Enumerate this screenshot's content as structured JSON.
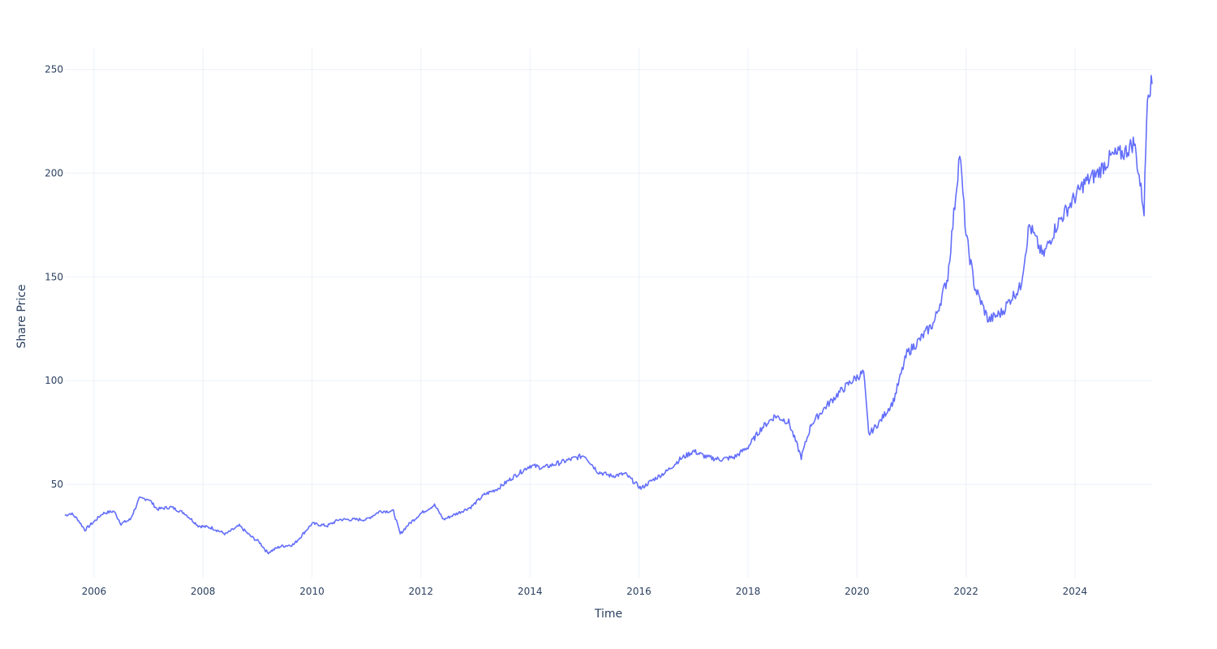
{
  "chart_data": {
    "type": "line",
    "title": "",
    "xlabel": "Time",
    "ylabel": "Share Price",
    "x_ticks": [
      "2006",
      "2008",
      "2010",
      "2012",
      "2014",
      "2016",
      "2018",
      "2020",
      "2022",
      "2024"
    ],
    "y_ticks": [
      50,
      100,
      150,
      200,
      250
    ],
    "xlim": [
      "2005-06-20",
      "2025-06-01"
    ],
    "ylim": [
      5,
      260
    ],
    "grid": true,
    "line_color": "#636efa",
    "series": [
      {
        "x": [
          "2005-06-20",
          "2005-08-01",
          "2005-09-15",
          "2005-11-01",
          "2006-01-01",
          "2006-03-01",
          "2006-05-15",
          "2006-07-01",
          "2006-09-01",
          "2006-11-01",
          "2007-01-01",
          "2007-03-01",
          "2007-06-01",
          "2007-09-01",
          "2007-12-01",
          "2008-03-01",
          "2008-06-01",
          "2008-09-01",
          "2008-11-15",
          "2009-01-15",
          "2009-03-09",
          "2009-06-01",
          "2009-09-01",
          "2010-01-01",
          "2010-04-15",
          "2010-07-01",
          "2010-10-01",
          "2011-01-01",
          "2011-04-01",
          "2011-07-01",
          "2011-08-15",
          "2011-10-01",
          "2012-01-01",
          "2012-04-01",
          "2012-06-01",
          "2012-09-01",
          "2012-12-01",
          "2013-03-01",
          "2013-06-01",
          "2013-09-01",
          "2014-01-01",
          "2014-04-01",
          "2014-07-01",
          "2014-10-01",
          "2015-01-01",
          "2015-04-01",
          "2015-07-01",
          "2015-10-01",
          "2016-01-15",
          "2016-04-01",
          "2016-07-01",
          "2016-10-01",
          "2017-01-01",
          "2017-04-01",
          "2017-07-01",
          "2017-10-01",
          "2018-01-01",
          "2018-04-01",
          "2018-07-01",
          "2018-10-01",
          "2018-12-24",
          "2019-03-01",
          "2019-06-01",
          "2019-09-01",
          "2019-12-01",
          "2020-02-15",
          "2020-03-20",
          "2020-06-01",
          "2020-09-01",
          "2020-12-01",
          "2021-03-01",
          "2021-06-01",
          "2021-09-01",
          "2021-11-20",
          "2022-01-01",
          "2022-03-01",
          "2022-06-01",
          "2022-09-01",
          "2022-11-01",
          "2023-01-01",
          "2023-03-01",
          "2023-06-01",
          "2023-09-01",
          "2023-12-01",
          "2024-03-01",
          "2024-06-01",
          "2024-09-01",
          "2024-12-01",
          "2025-02-01",
          "2025-04-08",
          "2025-05-01",
          "2025-06-01"
        ],
        "y": [
          35,
          36,
          33,
          28,
          32,
          36,
          37,
          31,
          33,
          43,
          43,
          38,
          39,
          36,
          30,
          29,
          26,
          30,
          25,
          22,
          17,
          20,
          21,
          31,
          30,
          33,
          33,
          33,
          37,
          37,
          26,
          30,
          36,
          40,
          33,
          36,
          39,
          45,
          48,
          53,
          59,
          58,
          60,
          62,
          64,
          56,
          54,
          55,
          48,
          52,
          56,
          62,
          66,
          63,
          62,
          63,
          68,
          77,
          83,
          80,
          63,
          79,
          87,
          94,
          100,
          104,
          74,
          80,
          90,
          113,
          120,
          128,
          150,
          210,
          170,
          145,
          129,
          133,
          140,
          145,
          175,
          160,
          175,
          185,
          195,
          200,
          208,
          210,
          215,
          182,
          240,
          243
        ]
      }
    ]
  }
}
